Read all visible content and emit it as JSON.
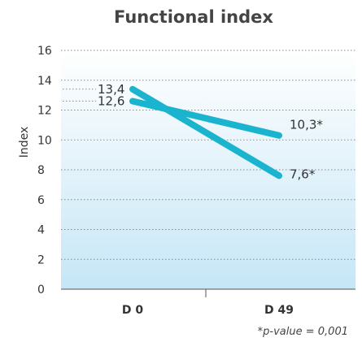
{
  "chart_data": {
    "type": "line",
    "title": "Functional index",
    "ylabel": "Index",
    "xlabel": "",
    "categories": [
      "D 0",
      "D 49"
    ],
    "ylim": [
      0,
      16
    ],
    "yticks": [
      "0",
      "2",
      "4",
      "6",
      "8",
      "10",
      "12",
      "14",
      "16"
    ],
    "grid": true,
    "series": [
      {
        "values": [
          12.6,
          10.3
        ],
        "labels": [
          "12,6",
          "10,3*"
        ],
        "color": "#1ab4cf"
      },
      {
        "values": [
          13.4,
          7.6
        ],
        "labels": [
          "13,4",
          "7,6*"
        ],
        "color": "#1ab4cf"
      }
    ],
    "footnote": "*p-value = 0,001",
    "background_gradient": [
      "#ffffff",
      "#c6e6f6"
    ]
  }
}
